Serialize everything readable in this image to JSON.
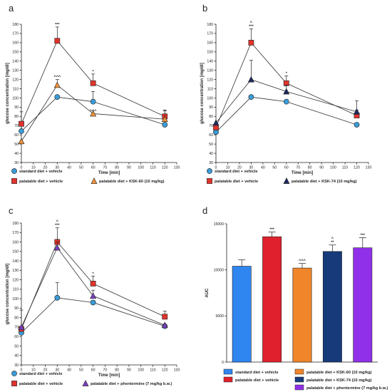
{
  "chart_data": [
    {
      "panel": "a",
      "type": "line",
      "xlabel": "Time [min]",
      "ylabel": "glucose concentration [mg/dl]",
      "xlim": [
        0,
        130
      ],
      "ylim": [
        30,
        180
      ],
      "xticks": [
        0,
        10,
        20,
        30,
        40,
        50,
        60,
        70,
        80,
        90,
        100,
        110,
        120,
        130
      ],
      "yticks": [
        30,
        40,
        50,
        60,
        70,
        80,
        90,
        100,
        110,
        120,
        130,
        140,
        150,
        160,
        170,
        180
      ],
      "x": [
        0,
        30,
        60,
        120
      ],
      "series": [
        {
          "name": "standard diet + vehicle",
          "color": "#3a9bd6",
          "marker": "circle",
          "values": [
            64,
            101,
            96,
            71
          ],
          "errors": [
            6,
            0,
            11,
            0
          ],
          "annotations": [
            "",
            "",
            "",
            ""
          ]
        },
        {
          "name": "palatable diet + vehicle",
          "color": "#e0342c",
          "marker": "square",
          "values": [
            72,
            162,
            116,
            80
          ],
          "errors": [
            13,
            15,
            10,
            7
          ],
          "annotations": [
            "",
            "***",
            "*",
            ""
          ]
        },
        {
          "name": "palatable diet + KSK-60 (10 mg/kg)",
          "color": "#f0923a",
          "marker": "triangle",
          "values": [
            53,
            114,
            83,
            77
          ],
          "errors": [
            0,
            6,
            0,
            9
          ],
          "annotations": [
            "",
            "^^^",
            "^^^",
            ""
          ]
        }
      ]
    },
    {
      "panel": "b",
      "type": "line",
      "xlabel": "Time [min]",
      "ylabel": "glucose concentration [mg/dl]",
      "xlim": [
        0,
        130
      ],
      "ylim": [
        30,
        180
      ],
      "xticks": [
        0,
        10,
        20,
        30,
        40,
        50,
        60,
        70,
        80,
        90,
        100,
        110,
        120,
        130
      ],
      "yticks": [
        30,
        40,
        50,
        60,
        70,
        80,
        90,
        100,
        110,
        120,
        130,
        140,
        150,
        160,
        170,
        180
      ],
      "x": [
        0,
        30,
        60,
        120
      ],
      "series": [
        {
          "name": "standard diet + vehicle",
          "color": "#3a9bd6",
          "marker": "circle",
          "values": [
            63,
            101,
            96,
            71
          ],
          "errors": [
            3,
            0,
            0,
            0
          ],
          "annotations": [
            "",
            "",
            "",
            ""
          ]
        },
        {
          "name": "palatable diet + vehicle",
          "color": "#e0342c",
          "marker": "square",
          "values": [
            68,
            160,
            116,
            81
          ],
          "errors": [
            4,
            15,
            8,
            6
          ],
          "annotations": [
            "",
            "^\n***",
            "*",
            ""
          ]
        },
        {
          "name": "palatable diet + KSK-74 (10 mg/kg)",
          "color": "#1e2a5e",
          "marker": "triangle",
          "values": [
            73,
            120,
            107,
            85
          ],
          "errors": [
            0,
            21,
            7,
            12
          ],
          "annotations": [
            "",
            "",
            "",
            ""
          ]
        }
      ]
    },
    {
      "panel": "c",
      "type": "line",
      "xlabel": "Time [min]",
      "ylabel": "glucose concentration [mg/dl]",
      "xlim": [
        0,
        130
      ],
      "ylim": [
        30,
        180
      ],
      "xticks": [
        0,
        10,
        20,
        30,
        40,
        50,
        60,
        70,
        80,
        90,
        100,
        110,
        120,
        130
      ],
      "yticks": [
        30,
        40,
        50,
        60,
        70,
        80,
        90,
        100,
        110,
        120,
        130,
        140,
        150,
        160,
        170,
        180
      ],
      "x": [
        0,
        30,
        60,
        120
      ],
      "series": [
        {
          "name": "standard diet + vehicle",
          "color": "#3a9bd6",
          "marker": "circle",
          "values": [
            64,
            101,
            96,
            71
          ],
          "errors": [
            6,
            16,
            0,
            0
          ],
          "annotations": [
            "",
            "",
            "",
            ""
          ]
        },
        {
          "name": "palatable diet + vehicle",
          "color": "#e0342c",
          "marker": "square",
          "values": [
            68,
            160,
            116,
            81
          ],
          "errors": [
            20,
            15,
            8,
            6
          ],
          "annotations": [
            "",
            "^\n***",
            "*",
            ""
          ]
        },
        {
          "name": "palatable diet + phentermine (7 mg/kg b.w.)",
          "color": "#7b3fbf",
          "marker": "triangle",
          "values": [
            70,
            154,
            103,
            72
          ],
          "errors": [
            0,
            6,
            6,
            0
          ],
          "annotations": [
            "",
            "+",
            "",
            ""
          ]
        }
      ]
    },
    {
      "panel": "d",
      "type": "bar",
      "ylabel": "AUC",
      "ylim": [
        0,
        15000
      ],
      "yticks": [
        0,
        5000,
        10000,
        15000
      ],
      "categories": [
        "standard diet + vehicle",
        "palatable diet + vehicle",
        "palatable diet + KSK-60 (10 mg/kg)",
        "palatable diet + KSK-74 (10 mg/kg)",
        "palatable diet + phentermine (7 mg/kg b.w.)"
      ],
      "colors": [
        "#2f86f0",
        "#e0202c",
        "#f0852a",
        "#163a7a",
        "#9030e8"
      ],
      "values": [
        10400,
        13600,
        10200,
        12000,
        12400
      ],
      "errors": [
        700,
        500,
        500,
        700,
        1100
      ],
      "annotations": [
        "",
        "***",
        "^^^",
        "^\n**",
        "***"
      ]
    }
  ]
}
